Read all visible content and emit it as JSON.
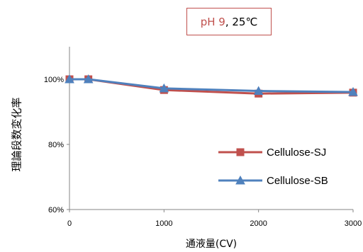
{
  "condition": {
    "ph": "pH 9",
    "rest": ", 25℃"
  },
  "chart_data": {
    "type": "line",
    "xlabel": "通液量(CV)",
    "ylabel": "理論段数変化率",
    "x": [
      0,
      200,
      1000,
      2000,
      3000
    ],
    "xlim": [
      0,
      3000
    ],
    "ylim": [
      60,
      110
    ],
    "x_ticks": [
      0,
      1000,
      2000,
      3000
    ],
    "y_ticks": [
      60,
      80,
      100
    ],
    "y_tick_labels": [
      "60%",
      "80%",
      "100%"
    ],
    "grid": false,
    "legend_position": "right",
    "series": [
      {
        "name": "Cellulose-SJ",
        "marker": "square",
        "color": "#c0504d",
        "values": [
          100,
          100,
          96.7,
          95.6,
          95.9
        ]
      },
      {
        "name": "Cellulose-SB",
        "marker": "triangle",
        "color": "#4f81bd",
        "values": [
          100,
          100,
          97.2,
          96.4,
          96.1
        ]
      }
    ]
  }
}
